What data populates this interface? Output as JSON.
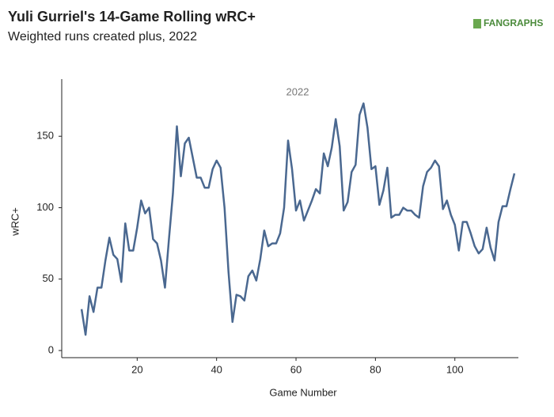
{
  "chart_data": {
    "type": "line",
    "title": "Yuli Gurriel's 14-Game Rolling wRC+",
    "subtitle": "Weighted runs created plus, 2022",
    "logo": "FANGRAPHS",
    "annotation": "2022",
    "x_label": "Game Number",
    "y_label": "wRC+",
    "x": [
      6,
      7,
      8,
      9,
      10,
      11,
      12,
      13,
      14,
      15,
      16,
      17,
      18,
      19,
      20,
      21,
      22,
      23,
      24,
      25,
      26,
      27,
      28,
      29,
      30,
      31,
      32,
      33,
      34,
      35,
      36,
      37,
      38,
      39,
      40,
      41,
      42,
      43,
      44,
      45,
      46,
      47,
      48,
      49,
      50,
      51,
      52,
      53,
      54,
      55,
      56,
      57,
      58,
      59,
      60,
      61,
      62,
      63,
      64,
      65,
      66,
      67,
      68,
      69,
      70,
      71,
      72,
      73,
      74,
      75,
      76,
      77,
      78,
      79,
      80,
      81,
      82,
      83,
      84,
      85,
      86,
      87,
      88,
      89,
      90,
      91,
      92,
      93,
      94,
      95,
      96,
      97,
      98,
      99,
      100,
      101,
      102,
      103,
      104,
      105,
      106,
      107,
      108,
      109,
      110,
      111,
      112,
      113,
      114,
      115
    ],
    "series": [
      {
        "name": "wRC+",
        "color": "#4a6890",
        "values": [
          29,
          11,
          38,
          27,
          44,
          44,
          63,
          79,
          67,
          64,
          48,
          89,
          70,
          70,
          86,
          105,
          96,
          100,
          78,
          75,
          63,
          44,
          78,
          110,
          157,
          122,
          145,
          149,
          135,
          121,
          121,
          114,
          114,
          127,
          133,
          128,
          100,
          55,
          20,
          39,
          38,
          35,
          52,
          56,
          49,
          64,
          84,
          73,
          75,
          75,
          82,
          100,
          147,
          127,
          98,
          105,
          91,
          98,
          105,
          113,
          110,
          138,
          129,
          142,
          162,
          143,
          98,
          104,
          125,
          130,
          165,
          173,
          156,
          127,
          129,
          102,
          112,
          128,
          93,
          95,
          95,
          100,
          98,
          98,
          95,
          93,
          115,
          125,
          128,
          133,
          129,
          99,
          105,
          95,
          88,
          70,
          90,
          90,
          82,
          73,
          68,
          71,
          86,
          72,
          63,
          90,
          101,
          101,
          113,
          124
        ]
      }
    ],
    "xlim": [
      1,
      116
    ],
    "ylim": [
      -5,
      190
    ],
    "xticks": [
      20,
      40,
      60,
      80,
      100
    ],
    "yticks": [
      0,
      50,
      100,
      150
    ]
  }
}
